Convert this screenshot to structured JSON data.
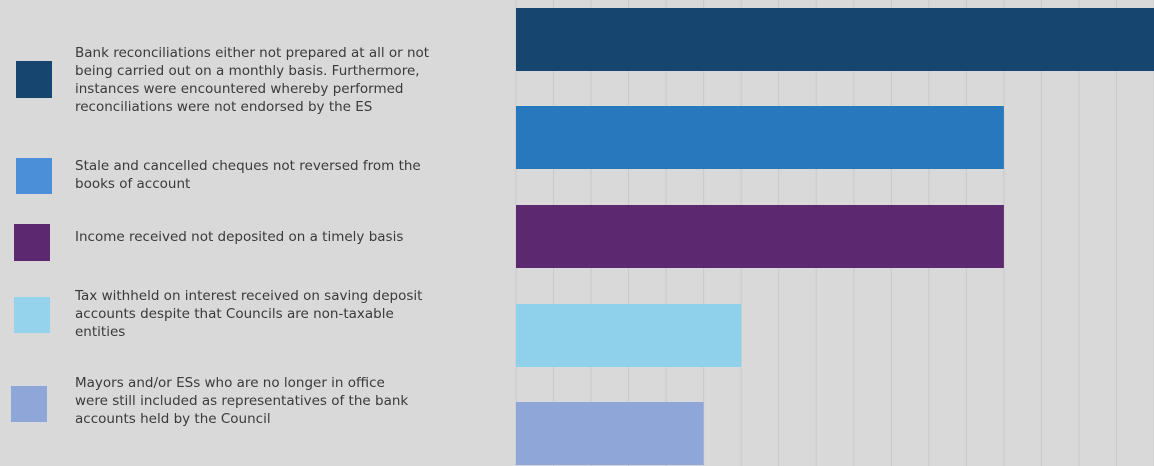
{
  "chart_data": {
    "type": "bar",
    "orientation": "horizontal",
    "categories": [
      "Bank reconciliations either not prepared at all or not\nbeing  carried out on a monthly basis. Furthermore,\ninstances were encountered whereby performed\nreconciliations were not endorsed by the ES",
      "Stale and cancelled cheques not reversed from the\nbooks of account",
      "Income received not deposited on a timely basis",
      "Tax withheld on interest received on saving deposit\naccounts despite that Councils are non-taxable\nentities",
      "Mayors and/or ESs who are no longer in office\nwere still included as representatives of the bank\naccounts held by the Council"
    ],
    "values": [
      17,
      13,
      13,
      6,
      5
    ],
    "xlim": [
      0,
      17
    ],
    "grid": true,
    "legend": "left",
    "colors": [
      "#16466f",
      "#2878bd",
      "#5c2870",
      "#8fd0ea",
      "#8fa7d8"
    ]
  }
}
